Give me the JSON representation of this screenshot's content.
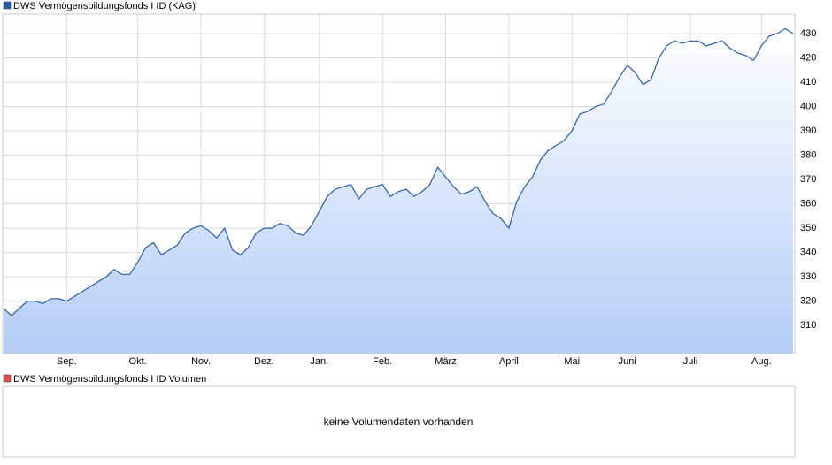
{
  "chart_data": {
    "type": "line",
    "series": [
      {
        "name": "DWS Vermögensbildungsfonds I ID (KAG)",
        "color": "#2a5ca8",
        "values": [
          317,
          314,
          317,
          320,
          320,
          319,
          321,
          321,
          320,
          322,
          324,
          326,
          328,
          330,
          333,
          331,
          331,
          336,
          342,
          344,
          339,
          341,
          343,
          348,
          350,
          351,
          349,
          346,
          350,
          341,
          339,
          342,
          348,
          350,
          350,
          352,
          351,
          348,
          347,
          351,
          357,
          363,
          366,
          367,
          368,
          362,
          366,
          367,
          368,
          363,
          365,
          366,
          363,
          365,
          368,
          375,
          371,
          367,
          364,
          365,
          367,
          361,
          356,
          354,
          350,
          361,
          367,
          371,
          378,
          382,
          384,
          386,
          390,
          397,
          398,
          400,
          401,
          406,
          412,
          417,
          414,
          409,
          411,
          420,
          425,
          427,
          426,
          427,
          427,
          425,
          426,
          427,
          424,
          422,
          421,
          419,
          425,
          429,
          430,
          432,
          430
        ]
      }
    ],
    "categories": [
      null,
      null,
      null,
      null,
      null,
      null,
      null,
      null,
      "Sep.",
      null,
      null,
      null,
      null,
      null,
      null,
      null,
      null,
      "Okt.",
      null,
      null,
      null,
      null,
      null,
      null,
      null,
      "Nov.",
      null,
      null,
      null,
      null,
      null,
      null,
      null,
      "Dez.",
      null,
      null,
      null,
      null,
      null,
      null,
      "Jan.",
      null,
      null,
      null,
      null,
      null,
      null,
      null,
      "Feb.",
      null,
      null,
      null,
      null,
      null,
      null,
      null,
      "März",
      null,
      null,
      null,
      null,
      null,
      null,
      null,
      "April",
      null,
      null,
      null,
      null,
      null,
      null,
      null,
      "Mai",
      null,
      null,
      null,
      null,
      null,
      null,
      "Juni",
      null,
      null,
      null,
      null,
      null,
      null,
      null,
      "Juli",
      null,
      null,
      null,
      null,
      null,
      null,
      null,
      null,
      "Aug.",
      null,
      null,
      null,
      null
    ],
    "ylim": [
      298.4,
      438
    ],
    "yticks": [
      310,
      320,
      330,
      340,
      350,
      360,
      370,
      380,
      390,
      400,
      410,
      420,
      430
    ],
    "grid": true
  },
  "volume_panel": {
    "title": "DWS Vermögensbildungsfonds I ID Volumen",
    "color": "#d9534f",
    "message": "keine Volumendaten vorhanden"
  }
}
